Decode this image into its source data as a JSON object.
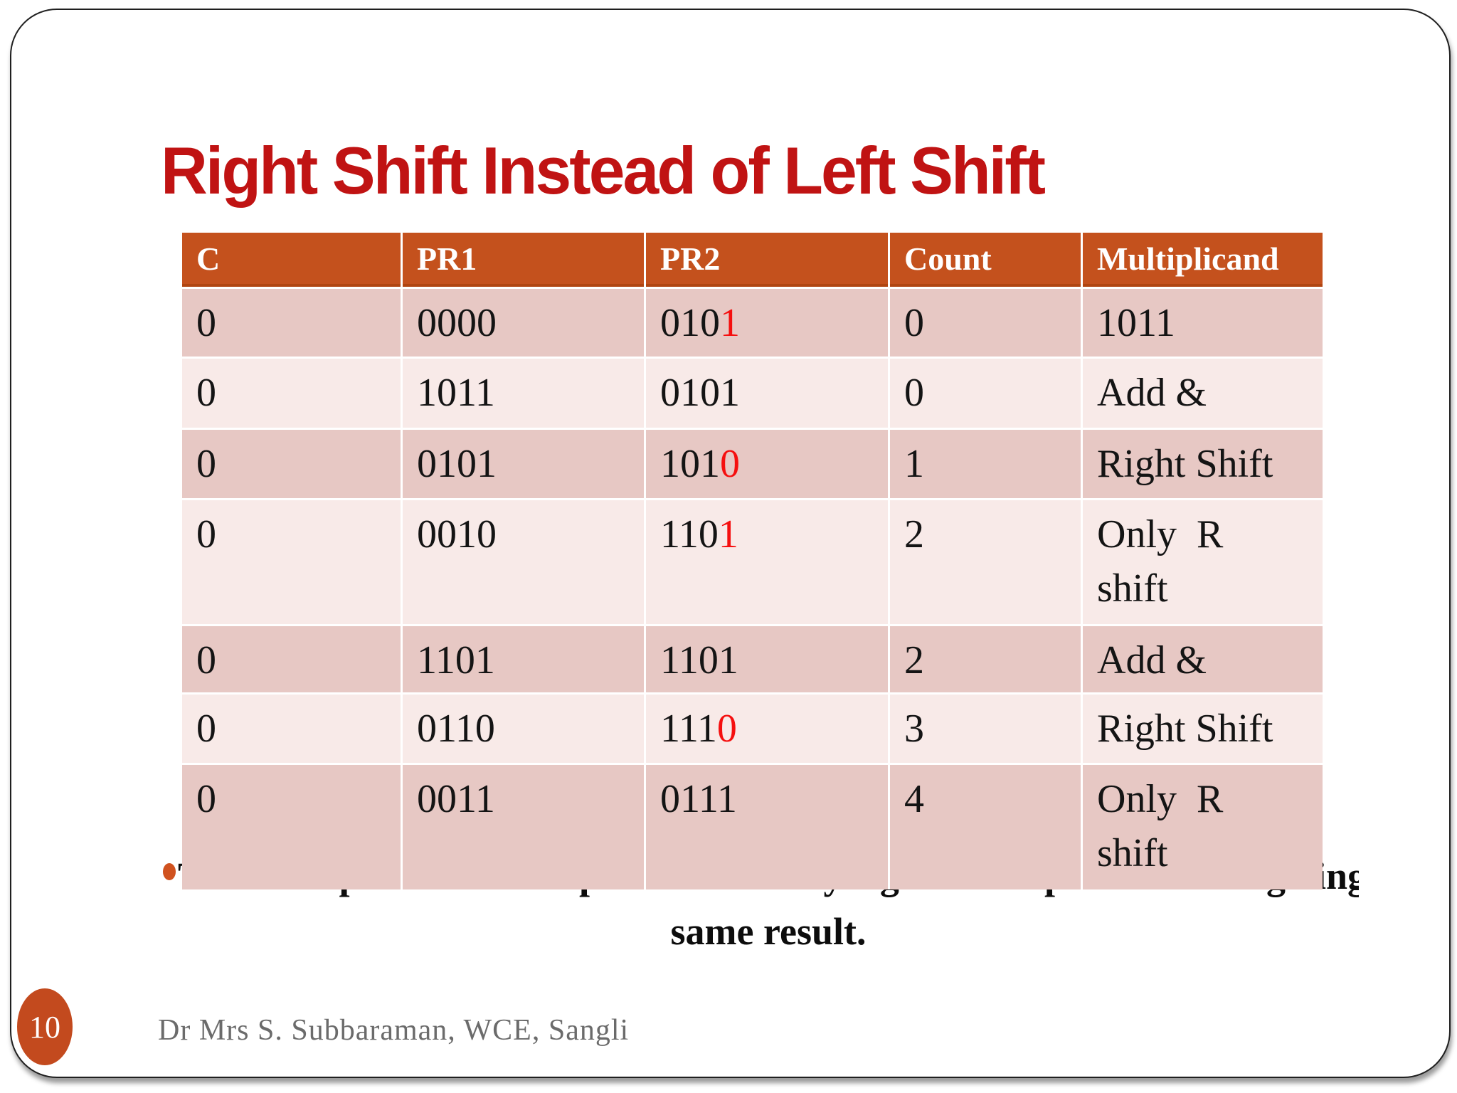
{
  "slide": {
    "title": "Right Shift Instead of Left Shift",
    "page_number": "10",
    "footer": "Dr Mrs S. Subbaraman, WCE, Sangli"
  },
  "table": {
    "headers": [
      "C",
      "PR1",
      "PR2",
      "Count",
      "Multiplicand"
    ],
    "columns_keys": [
      "c",
      "pr1",
      "pr2",
      "count",
      "multiplicand"
    ],
    "rows": [
      {
        "c": "0",
        "pr1": "0000",
        "pr2": "010",
        "pr2_red": "1",
        "count": "0",
        "multiplicand": "1011"
      },
      {
        "c": "0",
        "pr1": "1011",
        "pr2": "0101",
        "pr2_red": "",
        "count": "0",
        "multiplicand": "Add &"
      },
      {
        "c": "0",
        "pr1": "0101",
        "pr2": "101",
        "pr2_red": "0",
        "count": "1",
        "multiplicand": "Right Shift"
      },
      {
        "c": "0",
        "pr1": "0010",
        "pr2": "110",
        "pr2_red": "1",
        "count": "2",
        "multiplicand": "Only  R\nshift"
      },
      {
        "c": "0",
        "pr1": "1101",
        "pr2": "1101",
        "pr2_red": "",
        "count": "2",
        "multiplicand": "Add &"
      },
      {
        "c": "0",
        "pr1": "0110",
        "pr2": "111",
        "pr2_red": "0",
        "count": "3",
        "multiplicand": "Right Shift"
      },
      {
        "c": "0",
        "pr1": "0011",
        "pr2": "0111",
        "pr2_red": "",
        "count": "4",
        "multiplicand": "Only  R\nshift"
      }
    ]
  },
  "caption": {
    "line1_occluded_by_table": "The multiplication example is carried by right shift operation also giving the",
    "line2": "same result."
  },
  "colors": {
    "title_red": "#c01313",
    "header_orange": "#c4511d",
    "band_dark_pink": "#e7c8c4",
    "band_light_pink": "#f8eae8",
    "digit_red": "#f50f0f",
    "bullet_orange": "#d0521f",
    "badge_orange": "#c34a1e",
    "footer_gray": "#6b6b6b"
  }
}
